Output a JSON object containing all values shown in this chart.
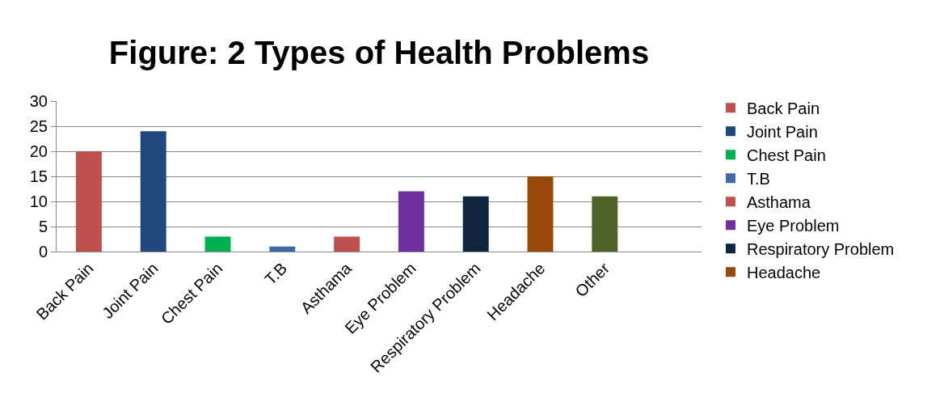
{
  "chart_data": {
    "type": "bar",
    "title": "Figure: 2 Types of Health Problems",
    "categories": [
      "Back Pain",
      "Joint Pain",
      "Chest Pain",
      "T.B",
      "Asthama",
      "Eye Problem",
      "Respiratory Problem",
      "Headache",
      "Other",
      null
    ],
    "series": [
      {
        "name": "Back Pain",
        "color": "#c0504d",
        "values": [
          20,
          null,
          null,
          null,
          null,
          null,
          null,
          null,
          null,
          null
        ]
      },
      {
        "name": "Joint Pain",
        "color": "#1f497d",
        "values": [
          null,
          24,
          null,
          null,
          null,
          null,
          null,
          null,
          null,
          null
        ]
      },
      {
        "name": "Chest Pain",
        "color": "#00b050",
        "values": [
          null,
          null,
          3,
          null,
          null,
          null,
          null,
          null,
          null,
          null
        ]
      },
      {
        "name": "T.B",
        "color": "#3e6aa3",
        "values": [
          null,
          null,
          null,
          1,
          null,
          null,
          null,
          null,
          null,
          null
        ]
      },
      {
        "name": "Asthama",
        "color": "#c0504d",
        "values": [
          null,
          null,
          null,
          null,
          3,
          null,
          null,
          null,
          null,
          null
        ]
      },
      {
        "name": "Eye Problem",
        "color": "#7030a0",
        "values": [
          null,
          null,
          null,
          null,
          null,
          12,
          null,
          null,
          null,
          null
        ]
      },
      {
        "name": "Respiratory Problem",
        "color": "#0f243e",
        "values": [
          null,
          null,
          null,
          null,
          null,
          null,
          11,
          null,
          null,
          null
        ]
      },
      {
        "name": "Headache",
        "color": "#984807",
        "values": [
          null,
          null,
          null,
          null,
          null,
          null,
          null,
          15,
          null,
          null
        ]
      },
      {
        "color": "#4f6228",
        "values": [
          null,
          null,
          null,
          null,
          null,
          null,
          null,
          null,
          11,
          null
        ]
      }
    ],
    "ylim": [
      0,
      30
    ],
    "yticks": [
      0,
      5,
      10,
      15,
      20,
      25,
      30
    ],
    "grid": "y",
    "legend": "right"
  }
}
